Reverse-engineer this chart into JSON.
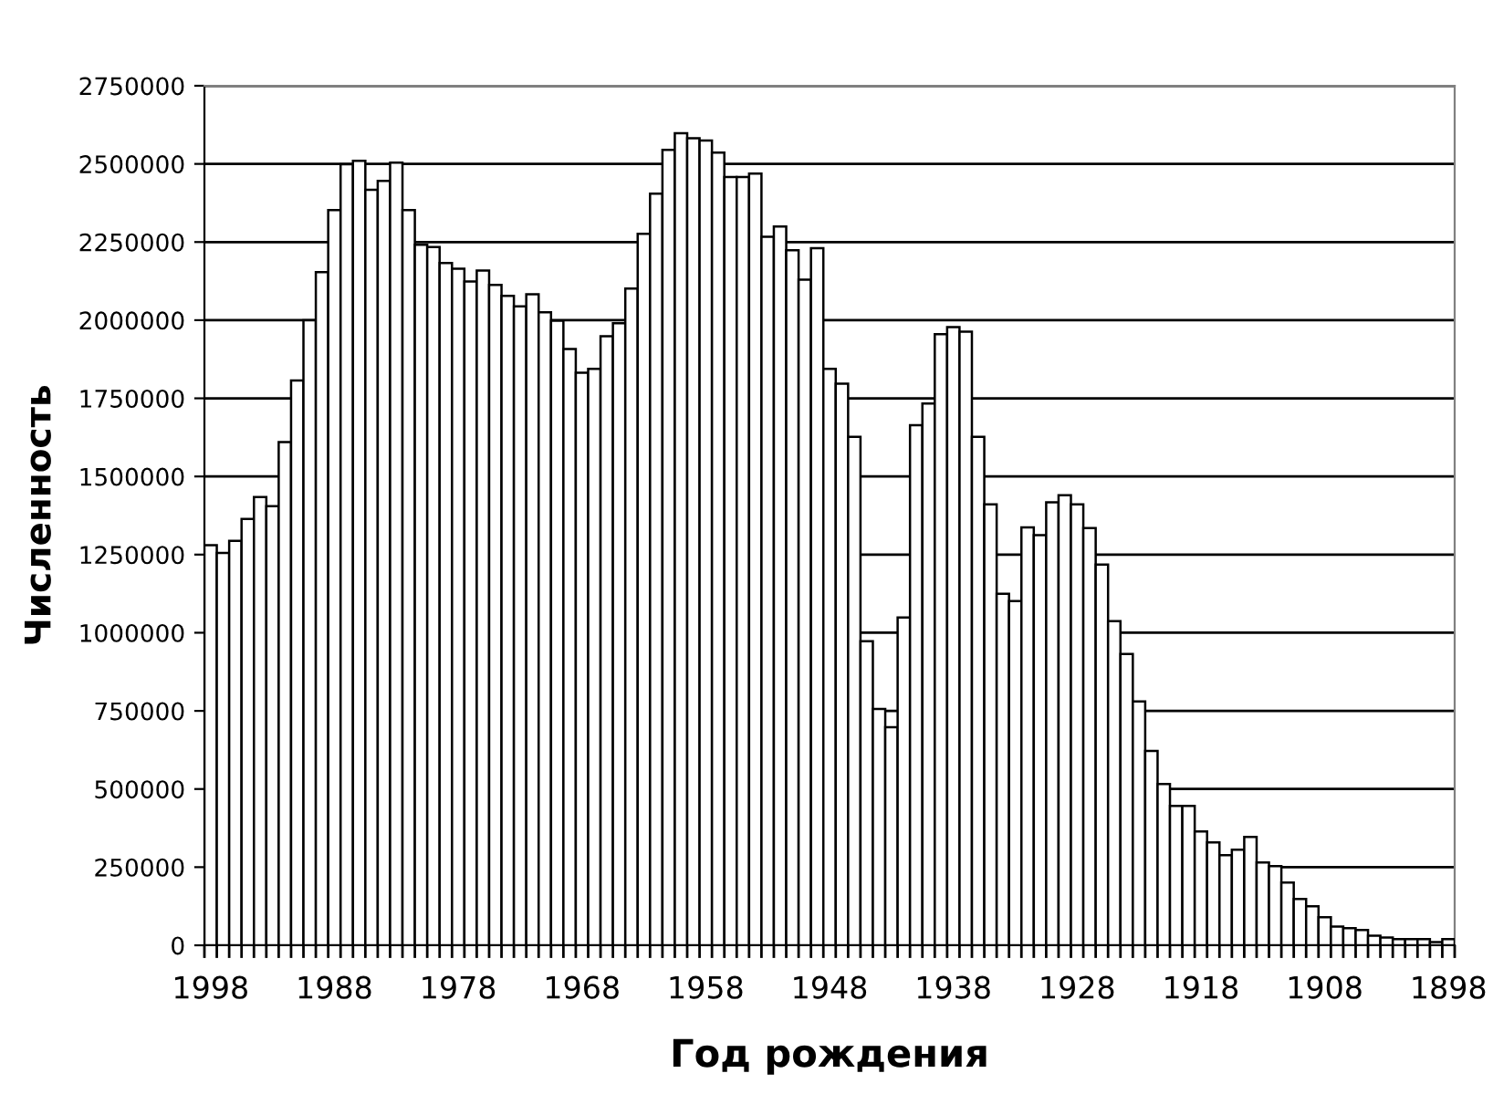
{
  "chart_data": {
    "type": "bar",
    "xlabel": "Год рождения",
    "ylabel": "Численность",
    "categories": [
      "1998",
      null,
      null,
      null,
      null,
      null,
      null,
      null,
      null,
      null,
      "1988",
      null,
      null,
      null,
      null,
      null,
      null,
      null,
      null,
      null,
      "1978",
      null,
      null,
      null,
      null,
      null,
      null,
      null,
      null,
      null,
      "1968",
      null,
      null,
      null,
      null,
      null,
      null,
      null,
      null,
      null,
      "1958",
      null,
      null,
      null,
      null,
      null,
      null,
      null,
      null,
      null,
      "1948",
      null,
      null,
      null,
      null,
      null,
      null,
      null,
      null,
      null,
      "1938",
      null,
      null,
      null,
      null,
      null,
      null,
      null,
      null,
      null,
      "1928",
      null,
      null,
      null,
      null,
      null,
      null,
      null,
      null,
      null,
      "1918",
      null,
      null,
      null,
      null,
      null,
      null,
      null,
      null,
      null,
      "1908",
      null,
      null,
      null,
      null,
      null,
      null,
      null,
      null,
      null,
      "1898"
    ],
    "values": [
      1280000,
      1255000,
      1294000,
      1364000,
      1434000,
      1405000,
      1610000,
      1807000,
      2000000,
      2154000,
      2352000,
      2499000,
      2510000,
      2417000,
      2446000,
      2504000,
      2352000,
      2241000,
      2234000,
      2183000,
      2165000,
      2124000,
      2159000,
      2113000,
      2078000,
      2044000,
      2083000,
      2025000,
      1998000,
      1908000,
      1832000,
      1844000,
      1949000,
      1990000,
      2101000,
      2276000,
      2405000,
      2545000,
      2598000,
      2582000,
      2575000,
      2536000,
      2458000,
      2458000,
      2469000,
      2267000,
      2300000,
      2224000,
      2130000,
      2230000,
      1844000,
      1797000,
      1627000,
      973000,
      756000,
      698000,
      1049000,
      1664000,
      1733000,
      1955000,
      1978000,
      1963000,
      1627000,
      1411000,
      1125000,
      1101000,
      1337000,
      1312000,
      1417000,
      1440000,
      1411000,
      1335000,
      1218000,
      1037000,
      932000,
      780000,
      622000,
      516000,
      446000,
      446000,
      364000,
      329000,
      288000,
      306000,
      347000,
      265000,
      253000,
      201000,
      148000,
      125000,
      90000,
      60000,
      55000,
      49000,
      31000,
      25000,
      20000,
      20000,
      20000,
      10000,
      20000
    ],
    "color": "#ffffff",
    "ylim": [
      0,
      2750000
    ],
    "yticks": [
      0,
      250000,
      500000,
      750000,
      1000000,
      1250000,
      1500000,
      1750000,
      2000000,
      2250000,
      2500000,
      2750000
    ],
    "grid": "y"
  }
}
